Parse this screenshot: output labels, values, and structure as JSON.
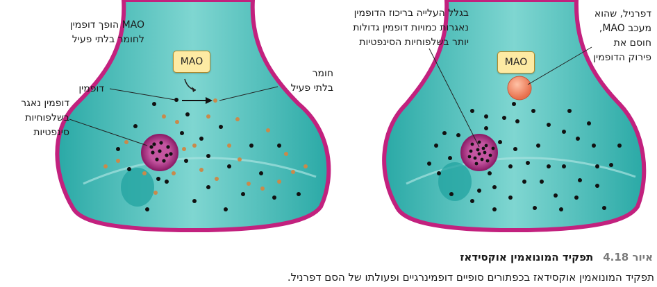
{
  "figure": {
    "left_panel": {
      "mao_label": "MAO",
      "mao_converts_label": "MAO הופך דופמין\nלחומר בלתי פעיל",
      "dopamine_label": "דופמין",
      "inactive_label": "חומר\nבלתי פעיל",
      "vesicle_label": "דופמין נאגר\nבשלפוחיות\nסינפטיות"
    },
    "right_panel": {
      "mao_label": "MAO",
      "increase_label": "בגלל העלייה בריכוז הדופמין\nנאגרות כמויות דופמין גדולות\nיותר בשלפוחיות הסינפטיות",
      "deprenyl_label": "דפרניל, שהוא\nמעכב MAO,\nחוסם את\nפירוק הדופמין"
    },
    "colors": {
      "terminal_fill": "#3fbcb8",
      "membrane": "#c2217e",
      "dopamine_dot": "#111111",
      "inactive_dot": "#c98a4b",
      "vesicle_fill": "#b43a86",
      "deprenyl_fill": "#f08a63",
      "mao_box": "#fdeaa3"
    }
  },
  "caption": {
    "label": "איור 4.18",
    "title": "תפקיד המונואמין אוקסידאז",
    "text": "תפקיד המונואמין אוקסידאז בכפתורים סופיים דופמינרגיים ופעולתו של הסם דפרניל."
  }
}
